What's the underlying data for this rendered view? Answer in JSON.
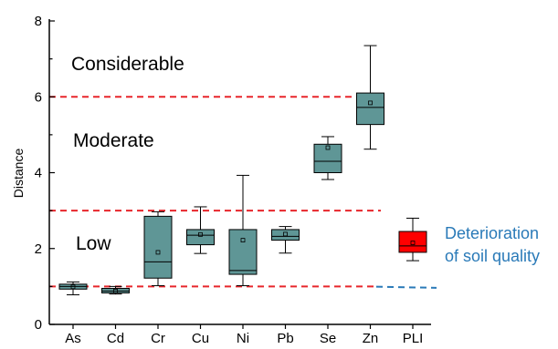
{
  "chart_data": {
    "type": "box",
    "ylabel": "Distance",
    "xlabel": "",
    "ylim": [
      0,
      8
    ],
    "yticks": [
      0,
      2,
      4,
      6,
      8
    ],
    "grid": false,
    "categories": [
      "As",
      "Cd",
      "Cr",
      "Cu",
      "Ni",
      "Pb",
      "Se",
      "Zn",
      "PLI"
    ],
    "boxes": [
      {
        "label": "As",
        "min": 0.78,
        "q1": 0.93,
        "median": 1.0,
        "q3": 1.06,
        "max": 1.12,
        "mean": 0.99
      },
      {
        "label": "Cd",
        "min": 0.8,
        "q1": 0.83,
        "median": 0.88,
        "q3": 0.95,
        "max": 1.0,
        "mean": 0.88
      },
      {
        "label": "Cr",
        "min": 1.02,
        "q1": 1.22,
        "median": 1.65,
        "q3": 2.85,
        "max": 2.97,
        "mean": 1.9
      },
      {
        "label": "Cu",
        "min": 1.87,
        "q1": 2.1,
        "median": 2.35,
        "q3": 2.5,
        "max": 3.1,
        "mean": 2.37
      },
      {
        "label": "Ni",
        "min": 1.02,
        "q1": 1.32,
        "median": 1.42,
        "q3": 2.5,
        "max": 3.93,
        "mean": 2.22
      },
      {
        "label": "Pb",
        "min": 1.88,
        "q1": 2.22,
        "median": 2.32,
        "q3": 2.5,
        "max": 2.58,
        "mean": 2.38
      },
      {
        "label": "Se",
        "min": 3.82,
        "q1": 4.0,
        "median": 4.3,
        "q3": 4.75,
        "max": 4.95,
        "mean": 4.66
      },
      {
        "label": "Zn",
        "min": 4.62,
        "q1": 5.27,
        "median": 5.72,
        "q3": 6.1,
        "max": 7.35,
        "mean": 5.84
      },
      {
        "label": "PLI",
        "min": 1.68,
        "q1": 1.9,
        "median": 2.07,
        "q3": 2.45,
        "max": 2.8,
        "mean": 2.15
      }
    ],
    "thresholds": [
      1,
      3,
      6
    ],
    "zones": [
      "Considerable",
      "Moderate",
      "Low"
    ],
    "annotation_lines": [
      "Deterioration",
      "of soil quality"
    ],
    "colors": {
      "box": "#5f9696",
      "pli_box": "#ff0000",
      "threshold": "#e8262b",
      "annotation": "#2a7ab8",
      "axis": "#000000"
    }
  }
}
